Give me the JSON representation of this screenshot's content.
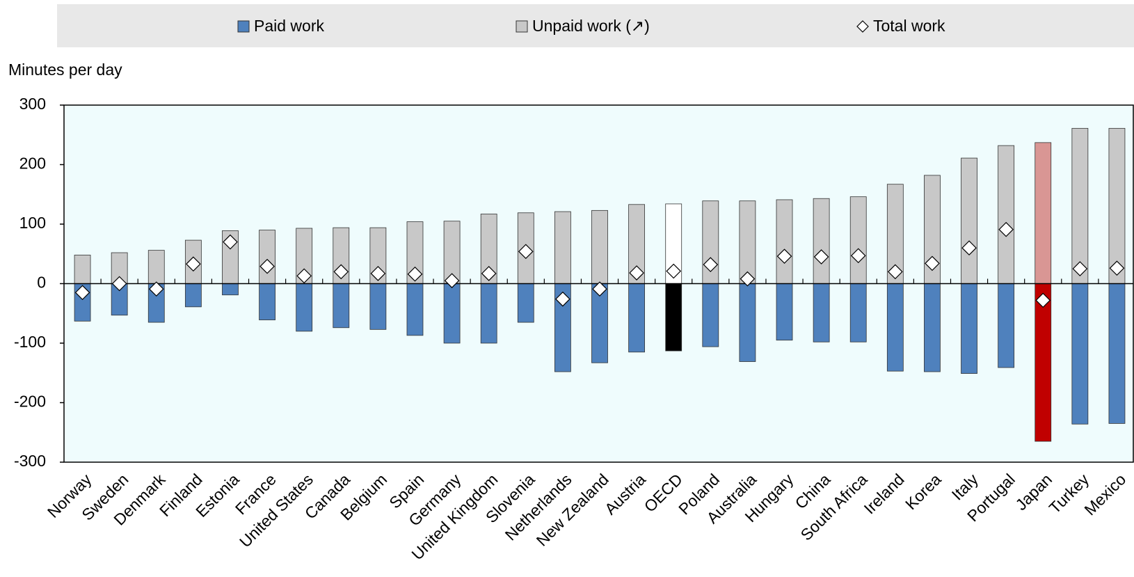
{
  "chart_data": {
    "type": "stacked-diverging-bar",
    "y_label": "Minutes per day",
    "categories": [
      "Norway",
      "Sweden",
      "Denmark",
      "Finland",
      "Estonia",
      "France",
      "United States",
      "Canada",
      "Belgium",
      "Spain",
      "Germany",
      "United Kingdom",
      "Slovenia",
      "Netherlands",
      "New Zealand",
      "Austria",
      "OECD",
      "Poland",
      "Australia",
      "Hungary",
      "China",
      "South Africa",
      "Ireland",
      "Korea",
      "Italy",
      "Portugal",
      "Japan",
      "Turkey",
      "Mexico"
    ],
    "series": [
      {
        "name": "Paid work",
        "kind": "bar",
        "color": "#4f81bd",
        "values": [
          -63,
          -53,
          -65,
          -39,
          -19,
          -61,
          -80,
          -74,
          -77,
          -87,
          -100,
          -100,
          -65,
          -148,
          -133,
          -115,
          -113,
          -106,
          -131,
          -95,
          -98,
          -98,
          -147,
          -148,
          -151,
          -141,
          -265,
          -236,
          -235
        ]
      },
      {
        "name": "Unpaid work (↗)",
        "kind": "bar",
        "color": "#c8c8c8",
        "values": [
          48,
          52,
          56,
          73,
          89,
          90,
          93,
          94,
          94,
          104,
          105,
          117,
          119,
          121,
          123,
          133,
          134,
          139,
          139,
          141,
          143,
          146,
          167,
          182,
          211,
          232,
          237,
          261,
          261
        ]
      },
      {
        "name": "Total work",
        "kind": "diamond",
        "color": "#ffffff",
        "values": [
          -15,
          0,
          -9,
          33,
          70,
          29,
          13,
          20,
          17,
          16,
          5,
          17,
          54,
          -26,
          -9,
          18,
          21,
          32,
          8,
          46,
          45,
          47,
          20,
          34,
          60,
          91,
          -28,
          25,
          26
        ]
      }
    ],
    "highlights": [
      {
        "category": "OECD",
        "colors": [
          "#000000",
          "#ffffff"
        ]
      },
      {
        "category": "Japan",
        "colors": [
          "#c00000",
          "#d99694"
        ]
      }
    ],
    "ylim": [
      -300,
      300
    ],
    "yticks": [
      -300,
      -200,
      -100,
      0,
      100,
      200,
      300
    ]
  }
}
